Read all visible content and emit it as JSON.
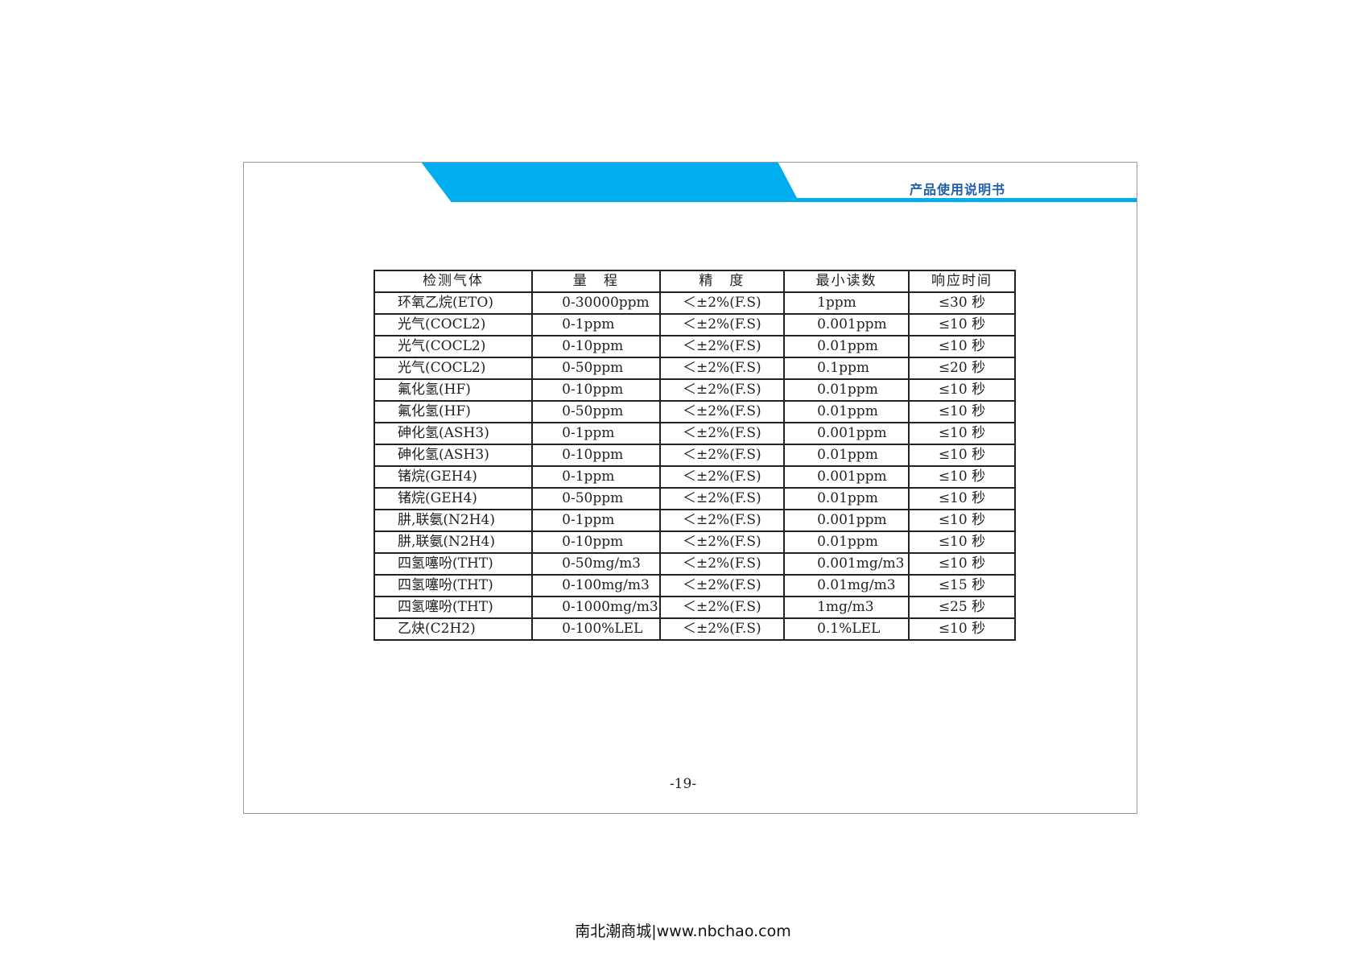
{
  "header": {
    "title": "产品使用说明书",
    "accent_color": "#00aeef",
    "title_color": "#1f5fa8"
  },
  "table": {
    "columns": [
      "检测气体",
      "量　程",
      "精　度",
      "最小读数",
      "响应时间"
    ],
    "rows": [
      [
        "环氧乙烷(ETO)",
        "0-30000ppm",
        "＜±2%(F.S)",
        "1ppm",
        "≤30 秒"
      ],
      [
        "光气(COCL2)",
        "0-1ppm",
        "＜±2%(F.S)",
        "0.001ppm",
        "≤10 秒"
      ],
      [
        "光气(COCL2)",
        "0-10ppm",
        "＜±2%(F.S)",
        "0.01ppm",
        "≤10 秒"
      ],
      [
        "光气(COCL2)",
        "0-50ppm",
        "＜±2%(F.S)",
        "0.1ppm",
        "≤20 秒"
      ],
      [
        "氟化氢(HF)",
        "0-10ppm",
        "＜±2%(F.S)",
        "0.01ppm",
        "≤10 秒"
      ],
      [
        "氟化氢(HF)",
        "0-50ppm",
        "＜±2%(F.S)",
        "0.01ppm",
        "≤10 秒"
      ],
      [
        "砷化氢(ASH3)",
        "0-1ppm",
        "＜±2%(F.S)",
        "0.001ppm",
        "≤10 秒"
      ],
      [
        "砷化氢(ASH3)",
        "0-10ppm",
        "＜±2%(F.S)",
        "0.01ppm",
        "≤10 秒"
      ],
      [
        "锗烷(GEH4)",
        "0-1ppm",
        "＜±2%(F.S)",
        "0.001ppm",
        "≤10 秒"
      ],
      [
        "锗烷(GEH4)",
        "0-50ppm",
        "＜±2%(F.S)",
        "0.01ppm",
        "≤10 秒"
      ],
      [
        "肼,联氨(N2H4)",
        "0-1ppm",
        "＜±2%(F.S)",
        "0.001ppm",
        "≤10 秒"
      ],
      [
        "肼,联氨(N2H4)",
        "0-10ppm",
        "＜±2%(F.S)",
        "0.01ppm",
        "≤10 秒"
      ],
      [
        "四氢噻吩(THT)",
        "0-50mg/m3",
        "＜±2%(F.S)",
        "0.001mg/m3",
        "≤10 秒"
      ],
      [
        "四氢噻吩(THT)",
        "0-100mg/m3",
        "＜±2%(F.S)",
        "0.01mg/m3",
        "≤15 秒"
      ],
      [
        "四氢噻吩(THT)",
        "0-1000mg/m3",
        "＜±2%(F.S)",
        "1mg/m3",
        "≤25 秒"
      ],
      [
        "乙炔(C2H2)",
        "0-100%LEL",
        "＜±2%(F.S)",
        "0.1%LEL",
        "≤10 秒"
      ]
    ]
  },
  "page_number": "-19-",
  "footer": "南北潮商城|www.nbchao.com"
}
